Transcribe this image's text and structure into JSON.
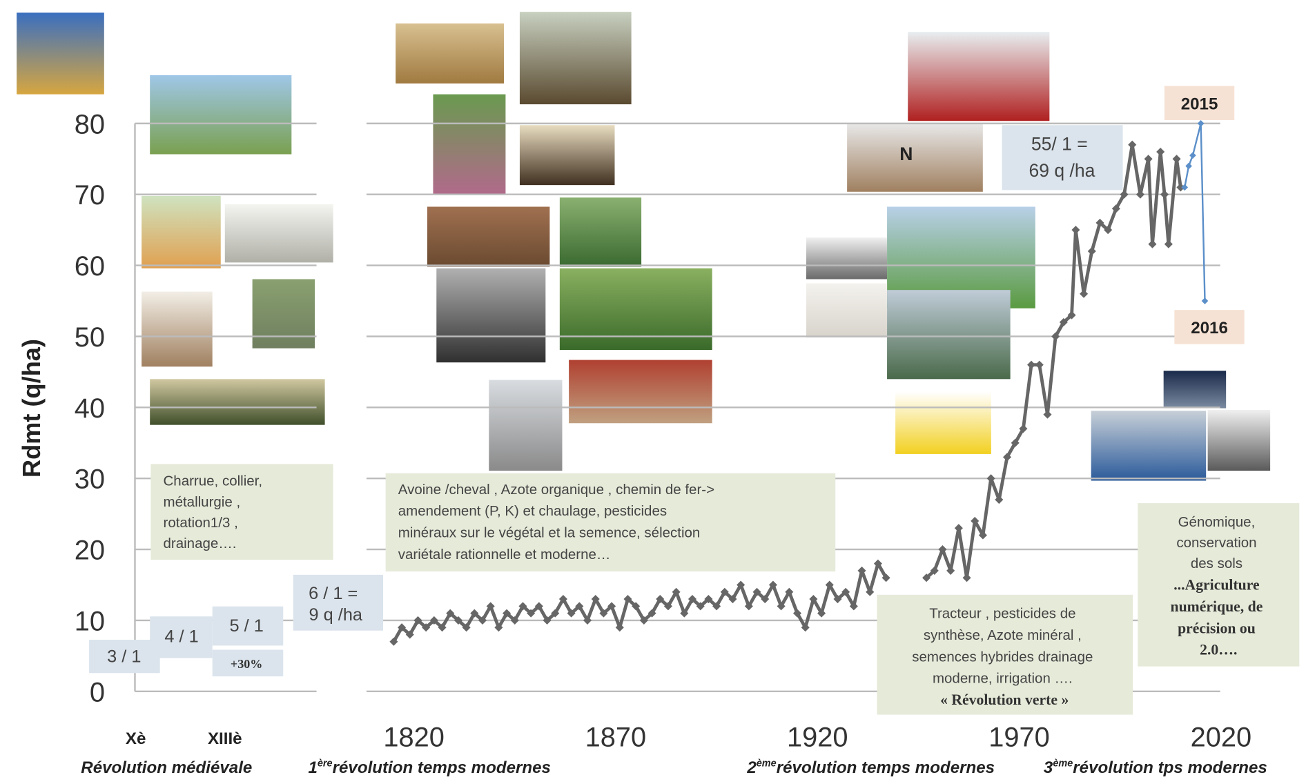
{
  "chart_data": {
    "type": "line",
    "ylabel": "Rdmt (q/ha)",
    "ylim": [
      0,
      80
    ],
    "yticks": [
      0,
      10,
      20,
      30,
      40,
      50,
      60,
      70,
      80
    ],
    "xlim": [
      1810,
      2030
    ],
    "xticks": [
      1820,
      1870,
      1920,
      1970,
      2020
    ],
    "medieval_categories": [
      "Xè",
      "XIIIè"
    ],
    "grid": true,
    "series": [
      {
        "color": "#666666",
        "x": [
          1815,
          1817,
          1819,
          1821,
          1823,
          1825,
          1827,
          1829,
          1831,
          1833,
          1835,
          1837,
          1839,
          1841,
          1843,
          1845,
          1847,
          1849,
          1851,
          1853,
          1855,
          1857,
          1859,
          1861,
          1863,
          1865,
          1867,
          1869,
          1871,
          1873,
          1875,
          1877,
          1879,
          1881,
          1883,
          1885,
          1887,
          1889,
          1891,
          1893,
          1895,
          1897,
          1899,
          1901,
          1903,
          1905,
          1907,
          1909,
          1911,
          1913,
          1915,
          1917,
          1919,
          1921,
          1923,
          1925,
          1927,
          1929,
          1931,
          1933,
          1935,
          1937,
          1940,
          1947,
          1949,
          1951,
          1953,
          1955,
          1957,
          1959,
          1961,
          1963,
          1965,
          1967,
          1969,
          1971,
          1973,
          1975,
          1977,
          1979,
          1981,
          1983,
          1984,
          1986,
          1988,
          1990,
          1992,
          1994,
          1996,
          1998,
          2000,
          2002,
          2003,
          2005,
          2006,
          2007,
          2009,
          2010
        ],
        "values": [
          7,
          9,
          8,
          10,
          9,
          10,
          9,
          11,
          10,
          9,
          11,
          10,
          12,
          9,
          11,
          10,
          12,
          11,
          12,
          10,
          11,
          13,
          11,
          12,
          10,
          13,
          11,
          12,
          9,
          13,
          12,
          10,
          11,
          13,
          12,
          14,
          11,
          13,
          12,
          13,
          12,
          14,
          13,
          15,
          12,
          14,
          13,
          15,
          12,
          14,
          11,
          9,
          13,
          11,
          15,
          13,
          14,
          12,
          17,
          14,
          18,
          16,
          null,
          16,
          17,
          20,
          17,
          23,
          16,
          24,
          22,
          30,
          27,
          33,
          35,
          37,
          46,
          46,
          39,
          50,
          52,
          53,
          65,
          56,
          62,
          66,
          65,
          68,
          70,
          77,
          70,
          75,
          63,
          76,
          70,
          63,
          75,
          71
        ]
      },
      {
        "color": "#5b8fc9",
        "x": [
          2011,
          2012,
          2013,
          2015,
          2016
        ],
        "values": [
          71,
          74,
          75.5,
          80,
          55
        ]
      }
    ],
    "eras": [
      {
        "text": "Révolution médiévale"
      },
      {
        "ordinal": "1",
        "sup": "ère",
        "text": "révolution temps modernes"
      },
      {
        "ordinal": "2",
        "sup": "ème",
        "text": "révolution temps modernes"
      },
      {
        "ordinal": "3",
        "sup": "ème",
        "text": "révolution tps modernes"
      }
    ],
    "annotations": {
      "medieval": [
        "Charrue,  collier,",
        "métallurgie ,",
        "rotation1/3 ,",
        "drainage…."
      ],
      "first": [
        "Avoine /cheval , Azote organique  , chemin de fer->",
        "amendement  (P, K) et chaulage,  pesticides",
        "minéraux sur le végétal et la semence, sélection",
        "variétale rationnelle et moderne…"
      ],
      "second": [
        "Tracteur ,  pesticides de",
        "synthèse,  Azote minéral ,",
        "semences hybrides drainage",
        "moderne, irrigation ….",
        "« Révolution verte »"
      ],
      "third": [
        "Génomique,",
        "conservation",
        "des sols",
        "...Agriculture",
        "numérique, de",
        "précision ou",
        "2.0…."
      ],
      "ratio_3": "3 / 1",
      "ratio_4": "4 / 1",
      "ratio_5": "5 / 1",
      "gain": "+30%",
      "ratio_6": [
        "6 / 1 =",
        "9 q /ha"
      ],
      "ratio_55": [
        "55/ 1 =",
        "69 q /ha"
      ],
      "year_2015": "2015",
      "year_2016": "2016",
      "photo_text": "N"
    }
  }
}
